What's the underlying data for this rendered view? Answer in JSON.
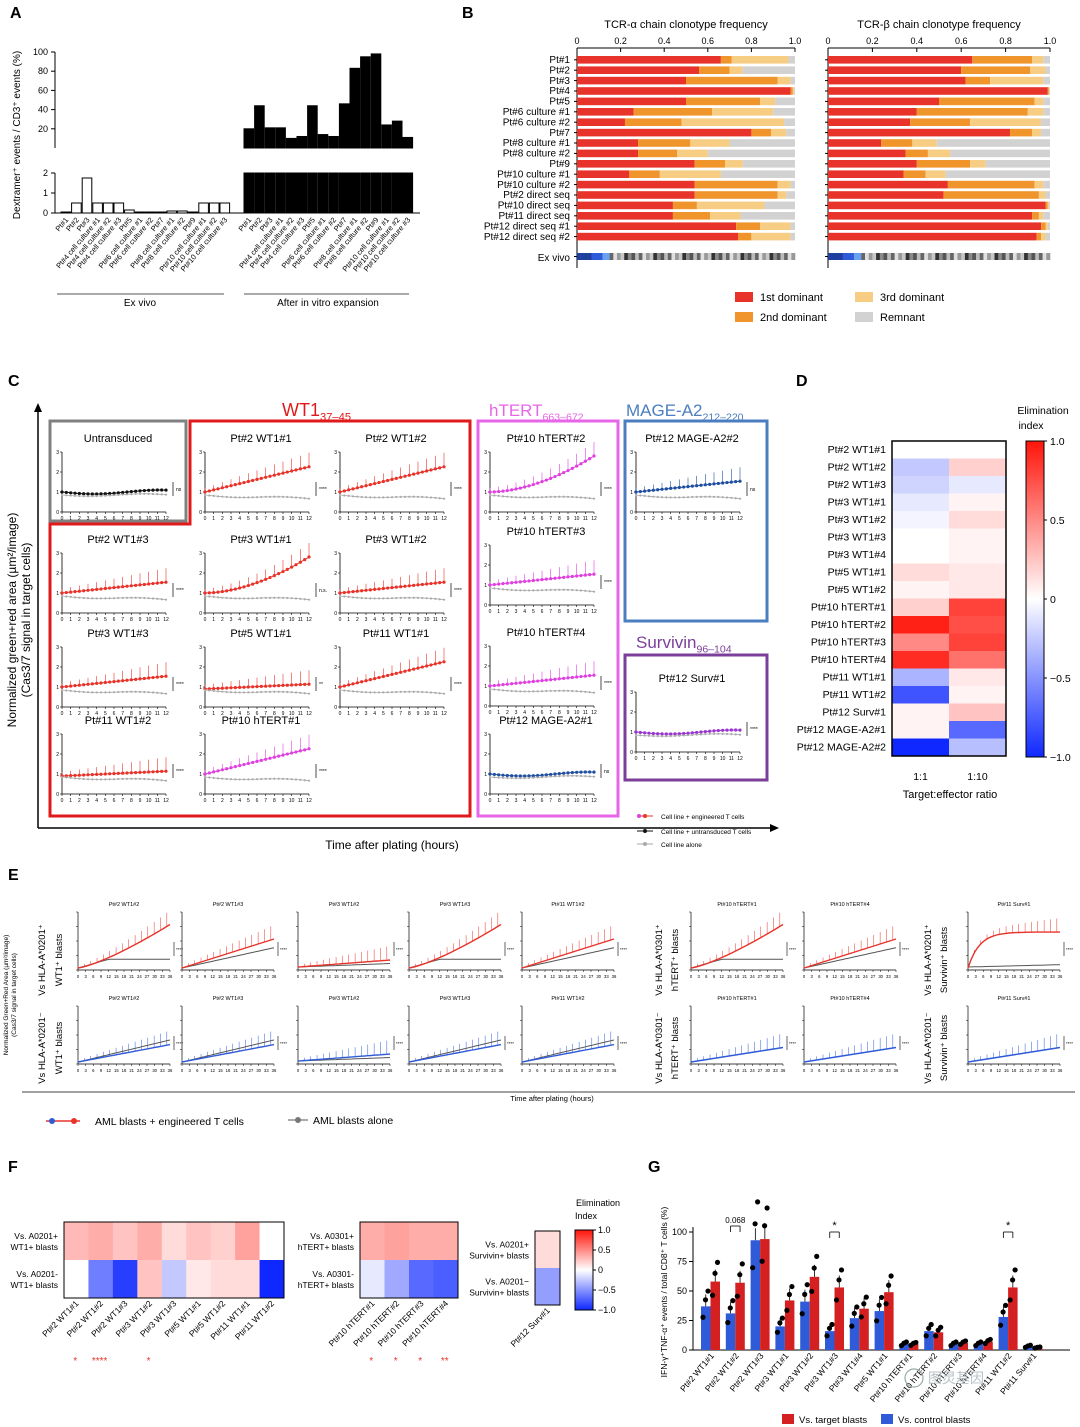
{
  "panels": {
    "A": {
      "letter": "A",
      "ylabel": "Dextramer⁺ events / CD3⁺ events (%)",
      "yticks_upper": [
        "100",
        "80",
        "60",
        "40",
        "20"
      ],
      "yticks_lower": [
        "2",
        "1",
        "0"
      ],
      "categories": [
        "Pt#1",
        "Pt#2",
        "Pt#3",
        "Pt#4 cell culture #1",
        "Pt#4 cell culture #2",
        "Pt#4 cell culture #3",
        "Pt#5",
        "Pt#6 cell culture #1",
        "Pt#6 cell culture #2",
        "Pt#7",
        "Pt#8 cell culture #1",
        "Pt#8 cell culture #2",
        "Pt#9",
        "Pt#10 cell culture #1",
        "Pt#10 cell culture #2",
        "Pt#10 cell culture #3"
      ],
      "ex_vivo_values": [
        0.05,
        0.5,
        1.75,
        0.5,
        0.5,
        0.5,
        0.15,
        0.05,
        0.05,
        0.05,
        0.1,
        0.1,
        0.05,
        0.5,
        0.5,
        0.5
      ],
      "expansion_values": [
        20,
        44,
        21,
        21,
        10,
        12,
        44,
        14,
        12,
        46,
        83,
        95,
        98,
        24,
        28,
        11
      ],
      "group_exvivo": "Ex vivo",
      "group_expansion": "After in vitro expansion"
    },
    "B": {
      "letter": "B",
      "title_alpha": "TCR-α chain clonotype frequency",
      "title_beta": "TCR-β chain clonotype frequency",
      "xticks": [
        "0",
        "0.2",
        "0.4",
        "0.6",
        "0.8",
        "1.0"
      ],
      "rows": [
        "Pt#1",
        "Pt#2",
        "Pt#3",
        "Pt#4",
        "Pt#5",
        "Pt#6 culture #1",
        "Pt#6 culture #2",
        "Pt#7",
        "Pt#8 culture #1",
        "Pt#8 culture #2",
        "Pt#9",
        "Pt#10 culture #1",
        "Pt#10 culture #2",
        "Pt#2 direct seq",
        "Pt#10 direct seq",
        "Pt#11 direct seq",
        "Pt#12 direct seq #1",
        "Pt#12 direct seq #2"
      ],
      "exvivo_label": "Ex vivo",
      "alpha": [
        [
          0.66,
          0.71,
          0.97
        ],
        [
          0.56,
          0.7,
          0.76
        ],
        [
          0.5,
          0.92,
          0.98
        ],
        [
          0.98,
          0.99,
          0.995
        ],
        [
          0.5,
          0.84,
          0.91
        ],
        [
          0.26,
          0.62,
          0.9
        ],
        [
          0.22,
          0.48,
          0.95
        ],
        [
          0.8,
          0.89,
          0.96
        ],
        [
          0.28,
          0.52,
          0.7
        ],
        [
          0.28,
          0.46,
          0.6
        ],
        [
          0.54,
          0.68,
          0.76
        ],
        [
          0.24,
          0.38,
          0.66
        ],
        [
          0.54,
          0.92,
          0.98
        ],
        [
          0.54,
          0.92,
          0.96
        ],
        [
          0.44,
          0.55,
          0.86
        ],
        [
          0.44,
          0.61,
          0.75
        ],
        [
          0.73,
          0.84,
          0.98
        ],
        [
          0.74,
          0.8,
          0.98
        ]
      ],
      "beta": [
        [
          0.65,
          0.92,
          0.97
        ],
        [
          0.6,
          0.91,
          0.98
        ],
        [
          0.62,
          0.73,
          0.97
        ],
        [
          0.99,
          0.995,
          0.998
        ],
        [
          0.5,
          0.93,
          0.97
        ],
        [
          0.4,
          0.9,
          0.97
        ],
        [
          0.37,
          0.64,
          0.96
        ],
        [
          0.82,
          0.92,
          0.96
        ],
        [
          0.24,
          0.38,
          0.49
        ],
        [
          0.35,
          0.45,
          0.55
        ],
        [
          0.4,
          0.64,
          0.71
        ],
        [
          0.34,
          0.44,
          0.53
        ],
        [
          0.54,
          0.93,
          0.97
        ],
        [
          0.52,
          0.95,
          0.98
        ],
        [
          0.98,
          0.99,
          0.995
        ],
        [
          0.92,
          0.95,
          0.97
        ],
        [
          0.96,
          0.98,
          0.99
        ],
        [
          0.94,
          0.96,
          0.98
        ]
      ],
      "legend": [
        "1st dominant",
        "2nd dominant",
        "3rd dominant",
        "Remnant"
      ],
      "colors": [
        "#e8332a",
        "#f0952b",
        "#f7cd84",
        "#d2d2d2"
      ]
    },
    "C": {
      "letter": "C",
      "ylabel1": "Normalized green+red area (µm²/image)",
      "ylabel2": "(Cas3/7 signal in target cells)",
      "xlabel": "Time after plating (hours)",
      "wt1_label": "WT1",
      "wt1_sub": "37–45",
      "htert_label": "hTERT",
      "htert_sub": "663–672",
      "mage_label": "MAGE-A2",
      "mage_sub": "212–220",
      "surv_label": "Survivin",
      "surv_sub": "96–104",
      "plots": [
        "Untransduced",
        "Pt#2 WT1#1",
        "Pt#2 WT1#2",
        "Pt#2 WT1#3",
        "Pt#3 WT1#1",
        "Pt#3 WT1#2",
        "Pt#3 WT1#3",
        "Pt#5 WT1#1",
        "Pt#11 WT1#1",
        "Pt#11 WT1#2",
        "Pt#10 hTERT#1",
        "Pt#10 hTERT#2",
        "Pt#10 hTERT#3",
        "Pt#10 hTERT#4",
        "Pt#12 MAGE-A2#1",
        "Pt#12 MAGE-A2#2",
        "Pt#12 Surv#1"
      ],
      "sig": [
        "ns",
        "****",
        "****",
        "****",
        "n.s.",
        "****",
        "****",
        "**",
        "****",
        "****",
        "****",
        "****",
        "****",
        "****",
        "ns",
        "ns",
        "****"
      ],
      "legend": [
        "Cell line + engineered T cells",
        "Cell line + untransduced T cells",
        "Cell line alone"
      ]
    },
    "D": {
      "letter": "D",
      "rows": [
        "Pt#2 WT1#1",
        "Pt#2 WT1#2",
        "Pt#2 WT1#3",
        "Pt#3 WT1#1",
        "Pt#3 WT1#2",
        "Pt#3 WT1#3",
        "Pt#3 WT1#4",
        "Pt#5 WT1#1",
        "Pt#5 WT1#2",
        "Pt#10 hTERT#1",
        "Pt#10 hTERT#2",
        "Pt#10 hTERT#3",
        "Pt#10 hTERT#4",
        "Pt#11 WT1#1",
        "Pt#11 WT1#2",
        "Pt#12 Surv#1",
        "Pt#12 MAGE-A2#1",
        "Pt#12 MAGE-A2#2"
      ],
      "cols": [
        "1:1",
        "1:10"
      ],
      "values": [
        [
          0,
          0
        ],
        [
          -0.25,
          0.2
        ],
        [
          -0.2,
          -0.1
        ],
        [
          -0.1,
          0.05
        ],
        [
          -0.05,
          0.15
        ],
        [
          0,
          0.05
        ],
        [
          0,
          0.05
        ],
        [
          0.15,
          0.1
        ],
        [
          0.05,
          0.1
        ],
        [
          0.2,
          0.8
        ],
        [
          0.95,
          0.75
        ],
        [
          0.5,
          0.8
        ],
        [
          0.9,
          0.6
        ],
        [
          -0.35,
          0.1
        ],
        [
          -0.8,
          0.05
        ],
        [
          0.05,
          0.25
        ],
        [
          0.05,
          -0.7
        ],
        [
          -1.0,
          -0.3
        ]
      ],
      "xlabel": "Target:effector ratio",
      "cb_title": [
        "Elimination",
        "index"
      ],
      "cb_ticks": [
        "1.0",
        "0.5",
        "0",
        "−0.5",
        "−1.0"
      ]
    },
    "E": {
      "letter": "E",
      "ylabel1": "Normalized Green+Red Area (µm²/image)",
      "ylabel2": "(Cas3/7 signal in target cells)",
      "xlabel": "Time after plating (hours)",
      "row_labels": [
        "Vs HLA-A*0201⁺",
        "WT1⁺ blasts",
        "Vs HLA-A*0201⁻",
        "WT1⁺ blasts",
        "Vs HLA-A*0301⁺",
        "hTERT⁺ blasts",
        "Vs HLA-A*0301⁻",
        "hTERT⁺ blasts",
        "Vs HLA-A*0201⁺",
        "Survivin⁺ blasts",
        "Vs HLA-A*0201⁻",
        "Survivin⁺ blasts"
      ],
      "top_titles": [
        "Pt#2 WT1#2",
        "Pt#2 WT1#3",
        "Pt#3 WT1#2",
        "Pt#3 WT1#3",
        "Pt#11 WT1#2",
        "Pt#10 hTERT#1",
        "Pt#10 hTERT#4",
        "Pt#11 Surv#1"
      ],
      "bottom_titles": [
        "Pt#2 WT1#2",
        "Pt#2 WT1#3",
        "Pt#3 WT1#2",
        "Pt#3 WT1#3",
        "Pt#11 WT1#2",
        "Pt#10 hTERT#1",
        "Pt#10 hTERT#4",
        "Pt#11 Surv#1"
      ],
      "legend": [
        "AML blasts + engineered T cells",
        "AML blasts alone"
      ]
    },
    "F": {
      "letter": "F",
      "rowsA": [
        "Vs. A0201+",
        "WT1+ blasts",
        "Vs. A0201-",
        "WT1+ blasts"
      ],
      "rowsB": [
        "Vs. A0301+",
        "hTERT+ blasts",
        "Vs. A0301-",
        "hTERT+ blasts"
      ],
      "rowsC": [
        "Vs. A0201+",
        "Survivin+ blasts",
        "Vs. A0201−",
        "Survivin+ blasts"
      ],
      "colsA": [
        "Pt#2 WT1#1",
        "Pt#2 WT1#2",
        "Pt#2 WT1#3",
        "Pt#3 WT1#2",
        "Pt#3 WT1#3",
        "Pt#5 WT1#1",
        "Pt#5 WT1#2",
        "Pt#11 WT1#1",
        "Pt#11 WT1#2"
      ],
      "colsB": [
        "Pt#10 hTERT#1",
        "Pt#10 hTERT#2",
        "Pt#10 hTERT#3",
        "Pt#10 hTERT#4"
      ],
      "colsC": [
        "Pt#12 Surv#1"
      ],
      "valsA": [
        [
          0.3,
          0.35,
          0.25,
          0.35,
          0.15,
          0.25,
          0.2,
          0.4,
          0.0
        ],
        [
          0.0,
          -0.6,
          -0.9,
          0.25,
          -0.25,
          0.1,
          0.15,
          0.15,
          -1.0
        ]
      ],
      "valsB": [
        [
          0.35,
          0.4,
          0.35,
          0.35
        ],
        [
          -0.1,
          -0.4,
          -0.7,
          -0.75
        ]
      ],
      "valsC": [
        [
          0.15
        ],
        [
          -0.45
        ]
      ],
      "starsA": [
        "*",
        "****",
        "",
        "*",
        "",
        "",
        "",
        "",
        ""
      ],
      "starsB": [
        "*",
        "*",
        "*",
        "**"
      ],
      "cb_title": [
        "Elimination",
        "Index"
      ],
      "cb_ticks": [
        "1.0",
        "0.5",
        "0",
        "−0.5",
        "−1.0"
      ]
    },
    "G": {
      "letter": "G",
      "ylabel": "IFN-γ⁺TNF-α⁺ events / total CD8⁺ T cells (%)",
      "yticks": [
        "100",
        "75",
        "50",
        "25",
        "0"
      ],
      "categories": [
        "Pt#2 WT1#1",
        "Pt#2 WT1#2",
        "Pt#2 WT1#3",
        "Pt#3 WT1#1",
        "Pt#3 WT1#2",
        "Pt#3 WT1#3",
        "Pt#3 WT1#4",
        "Pt#5 WT1#1",
        "Pt#10 hTERT#1",
        "Pt#10 hTERT#2",
        "Pt#10 hTERT#3",
        "Pt#10 hTERT#4",
        "Pt#11 WT1#2",
        "Pt#11 Surv#1"
      ],
      "control": [
        37,
        31,
        93,
        20,
        41,
        16,
        27,
        33,
        5,
        16,
        5,
        5,
        28,
        3
      ],
      "target": [
        58,
        57,
        94,
        42,
        62,
        53,
        35,
        49,
        5,
        15,
        6,
        7,
        53,
        2
      ],
      "annotation": "0.068",
      "stars": [
        "*",
        "*"
      ],
      "legend": [
        "Vs. target blasts",
        "Vs. control blasts"
      ],
      "watermark": "图灵基因"
    }
  },
  "colors": {
    "red": "#e8332a",
    "orange": "#f0952b",
    "peach": "#f7cd84",
    "grey": "#d2d2d2",
    "magenta": "#e040e0",
    "blue": "#2f5bd8",
    "darkred": "#d42020",
    "wt1box": "#e01a1a",
    "htertbox": "#e765e7",
    "magebox": "#4b7ec0",
    "survbox": "#7b3f9b",
    "untrbox": "#808080"
  }
}
